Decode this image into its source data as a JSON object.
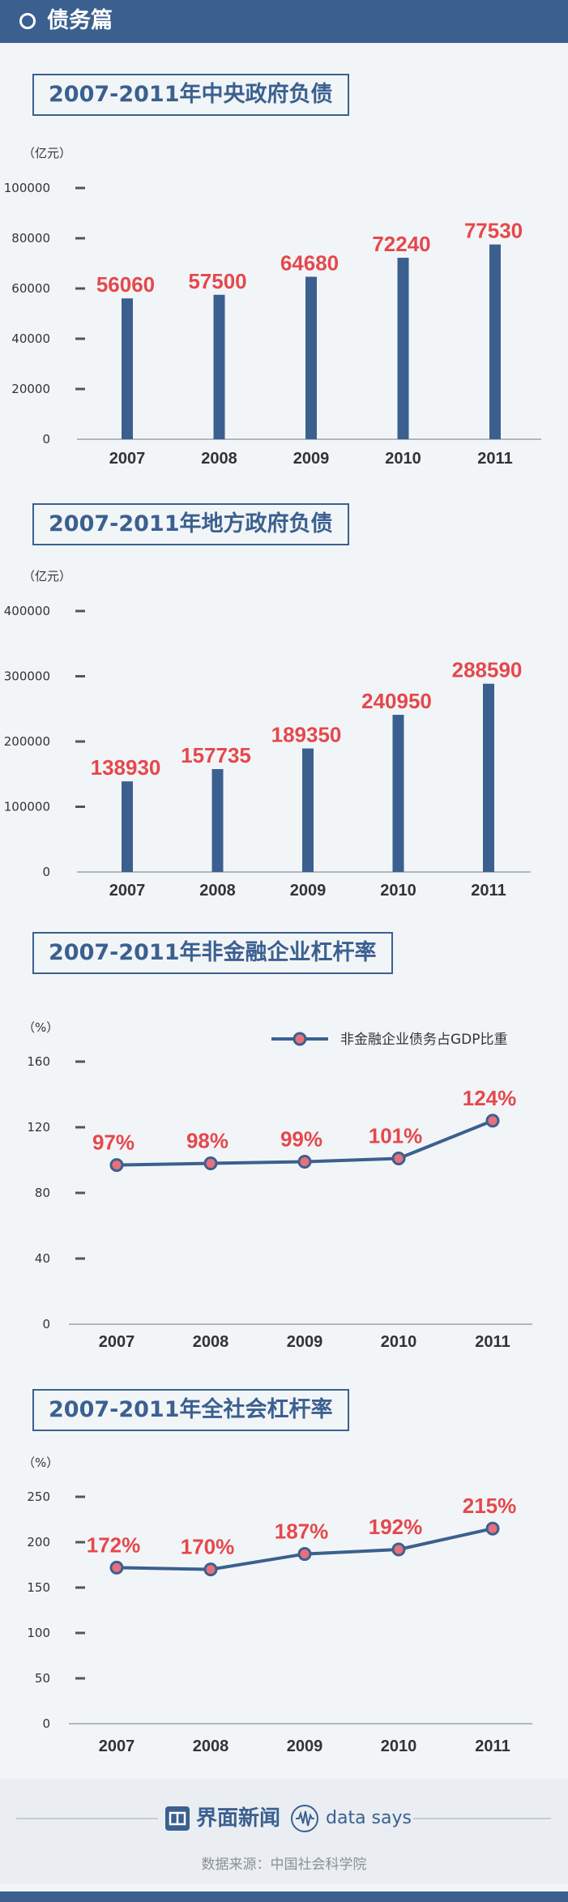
{
  "header": {
    "title": "债务篇"
  },
  "chart_data": [
    {
      "type": "bar",
      "title": "2007-2011年中央政府负债",
      "unit": "（亿元）",
      "categories": [
        "2007",
        "2008",
        "2009",
        "2010",
        "2011"
      ],
      "values": [
        56060,
        57500,
        64680,
        72240,
        77530
      ],
      "value_labels": [
        "56060",
        "57500",
        "64680",
        "72240",
        "77530"
      ],
      "yticks": [
        "0",
        "20000",
        "40000",
        "60000",
        "80000",
        "100000"
      ],
      "ylim": [
        0,
        100000
      ],
      "color": "#3b6090"
    },
    {
      "type": "bar",
      "title": "2007-2011年地方政府负债",
      "unit": "（亿元）",
      "categories": [
        "2007",
        "2008",
        "2009",
        "2010",
        "2011"
      ],
      "values": [
        138930,
        157735,
        189350,
        240950,
        288590
      ],
      "value_labels": [
        "138930",
        "157735",
        "189350",
        "240950",
        "288590"
      ],
      "yticks": [
        "0",
        "100000",
        "200000",
        "300000",
        "400000"
      ],
      "ylim": [
        0,
        400000
      ],
      "color": "#3b6090"
    },
    {
      "type": "line",
      "title": "2007-2011年非金融企业杠杆率",
      "unit": "（%）",
      "legend": "非金融企业债务占GDP比重",
      "categories": [
        "2007",
        "2008",
        "2009",
        "2010",
        "2011"
      ],
      "values": [
        97,
        98,
        99,
        101,
        124
      ],
      "value_labels": [
        "97%",
        "98%",
        "99%",
        "101%",
        "124%"
      ],
      "yticks": [
        "0",
        "40",
        "80",
        "120",
        "160"
      ],
      "ylim": [
        0,
        160
      ],
      "color": "#3b6090"
    },
    {
      "type": "line",
      "title": "2007-2011年全社会杠杆率",
      "unit": "（%）",
      "categories": [
        "2007",
        "2008",
        "2009",
        "2010",
        "2011"
      ],
      "values": [
        172,
        170,
        187,
        192,
        215
      ],
      "value_labels": [
        "172%",
        "170%",
        "187%",
        "192%",
        "215%"
      ],
      "yticks": [
        "0",
        "50",
        "100",
        "150",
        "200",
        "250"
      ],
      "ylim": [
        0,
        250
      ],
      "color": "#3b6090"
    }
  ],
  "footer": {
    "brand": "界面新闻",
    "brand_icon": "jiemian-logo-icon",
    "data_says": "data says",
    "data_says_icon": "waveform-circle-icon",
    "source": "数据来源：中国社会科学院"
  },
  "colors": {
    "primary": "#3b6090",
    "label": "#e5484d",
    "marker_fill": "#e8707a"
  }
}
